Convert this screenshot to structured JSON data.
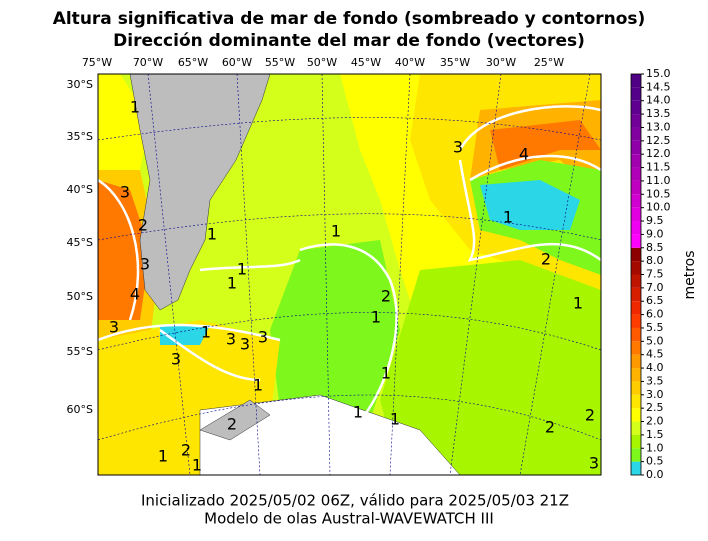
{
  "title": [
    "Altura significativa de mar de fondo (sombreado y contornos)",
    "Dirección dominante del mar de fondo (vectores)"
  ],
  "map": {
    "lon_labels": [
      "75°W",
      "70°W",
      "65°W",
      "60°W",
      "55°W",
      "50°W",
      "45°W",
      "40°W",
      "35°W",
      "30°W",
      "25°W"
    ],
    "lat_labels": [
      "30°S",
      "35°S",
      "40°S",
      "45°S",
      "50°S",
      "55°S",
      "60°S"
    ],
    "contour_labels": [
      "1",
      "3",
      "4",
      "1",
      "2",
      "1",
      "1",
      "1",
      "1",
      "1",
      "2",
      "1",
      "3",
      "2",
      "3",
      "4",
      "3",
      "1",
      "3",
      "3",
      "3",
      "3",
      "1",
      "1",
      "1",
      "1",
      "2",
      "1",
      "2",
      "1",
      "2",
      "2",
      "3"
    ]
  },
  "colorbar": {
    "label": "metros",
    "ticks": [
      {
        "value": 0,
        "label": "0.0"
      },
      {
        "value": 0.5,
        "label": "0.5"
      },
      {
        "value": 1,
        "label": "1.0"
      },
      {
        "value": 1.5,
        "label": "1.5"
      },
      {
        "value": 2,
        "label": "2.0"
      },
      {
        "value": 2.5,
        "label": "2.5"
      },
      {
        "value": 3,
        "label": "3.0"
      },
      {
        "value": 3.5,
        "label": "3.5"
      },
      {
        "value": 4,
        "label": "4.0"
      },
      {
        "value": 4.5,
        "label": "4.5"
      },
      {
        "value": 5,
        "label": "5.0"
      },
      {
        "value": 5.5,
        "label": "5.5"
      },
      {
        "value": 6,
        "label": "6.0"
      },
      {
        "value": 6.5,
        "label": "6.5"
      },
      {
        "value": 7,
        "label": "7.0"
      },
      {
        "value": 7.5,
        "label": "7.5"
      },
      {
        "value": 8,
        "label": "8.0"
      },
      {
        "value": 8.5,
        "label": "8.5"
      },
      {
        "value": 9,
        "label": "9.0"
      },
      {
        "value": 9.5,
        "label": "9.5"
      },
      {
        "value": 10,
        "label": "10.0"
      },
      {
        "value": 10.5,
        "label": "10.5"
      },
      {
        "value": 11,
        "label": "11.0"
      },
      {
        "value": 11.5,
        "label": "11.5"
      },
      {
        "value": 12,
        "label": "12.0"
      },
      {
        "value": 12.5,
        "label": "12.5"
      },
      {
        "value": 13,
        "label": "13.0"
      },
      {
        "value": 13.5,
        "label": "13.5"
      },
      {
        "value": 14,
        "label": "14.0"
      },
      {
        "value": 14.5,
        "label": "14.5"
      },
      {
        "value": 15,
        "label": "15.0"
      }
    ],
    "colors": [
      "#2bd6e6",
      "#7df71c",
      "#a8f500",
      "#d4ff1a",
      "#ffff00",
      "#ffe600",
      "#ffcc00",
      "#ffb300",
      "#ff9900",
      "#ff7800",
      "#ff5a00",
      "#ff3c00",
      "#f02800",
      "#d71e00",
      "#be1400",
      "#a50a00",
      "#8c0000",
      "#ff00ff",
      "#f000f0",
      "#e000e0",
      "#d000d0",
      "#c000c0",
      "#b000b8",
      "#a000b0",
      "#9000a8",
      "#8000a0",
      "#700098",
      "#600090",
      "#550088",
      "#4f0085",
      "#4b0082"
    ]
  },
  "footer": [
    "Inicializado 2025/05/02 06Z, válido para 2025/05/03 21Z",
    "Modelo de olas Austral-WAVEWATCH III"
  ]
}
